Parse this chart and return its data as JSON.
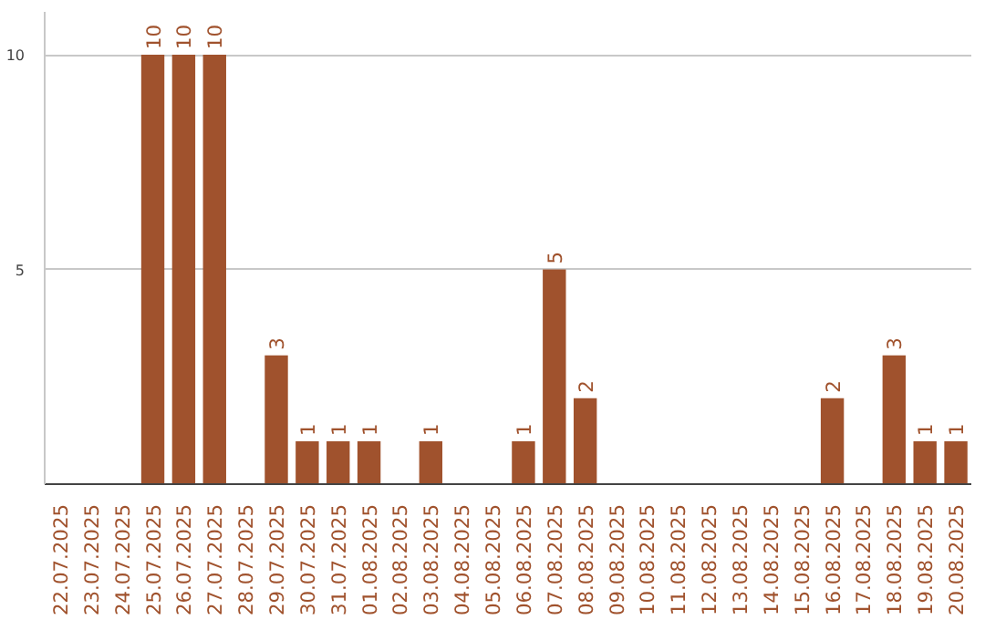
{
  "chart_data": {
    "type": "bar",
    "categories": [
      "22.07.2025",
      "23.07.2025",
      "24.07.2025",
      "25.07.2025",
      "26.07.2025",
      "27.07.2025",
      "28.07.2025",
      "29.07.2025",
      "30.07.2025",
      "31.07.2025",
      "01.08.2025",
      "02.08.2025",
      "03.08.2025",
      "04.08.2025",
      "05.08.2025",
      "06.08.2025",
      "07.08.2025",
      "08.08.2025",
      "09.08.2025",
      "10.08.2025",
      "11.08.2025",
      "12.08.2025",
      "13.08.2025",
      "14.08.2025",
      "15.08.2025",
      "16.08.2025",
      "17.08.2025",
      "18.08.2025",
      "19.08.2025",
      "20.08.2025"
    ],
    "values": [
      0,
      0,
      0,
      10,
      10,
      10,
      0,
      3,
      1,
      1,
      1,
      0,
      1,
      0,
      0,
      1,
      5,
      2,
      0,
      0,
      0,
      0,
      0,
      0,
      0,
      2,
      0,
      3,
      1,
      1
    ],
    "value_labels": [
      null,
      null,
      null,
      "10",
      "10",
      "10",
      null,
      "3",
      "1",
      "1",
      "1",
      null,
      "1",
      null,
      null,
      "1",
      "5",
      "2",
      null,
      null,
      null,
      null,
      null,
      null,
      null,
      "2",
      null,
      "3",
      "1",
      "1"
    ],
    "color": "#a0522d",
    "ylim": [
      0,
      11
    ],
    "yticks": [
      5,
      10
    ],
    "grid": "y"
  }
}
